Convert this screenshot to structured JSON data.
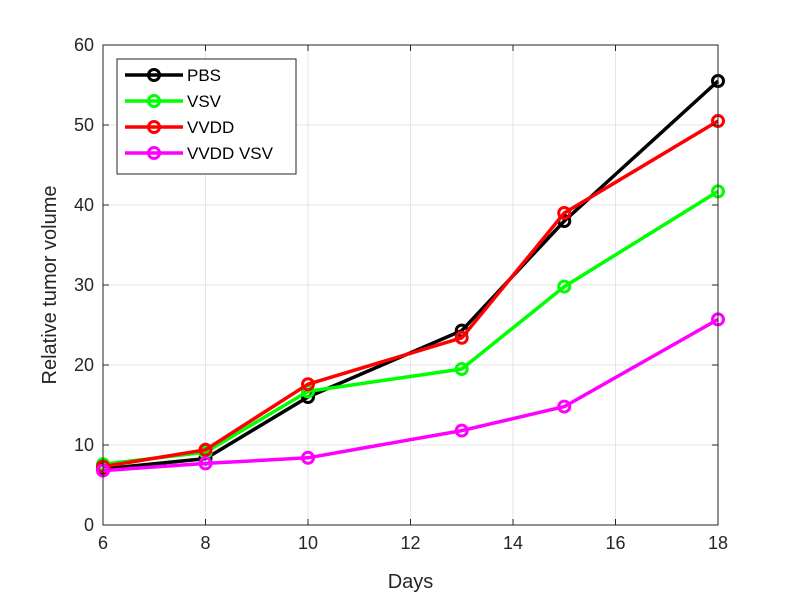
{
  "chart_data": {
    "type": "line",
    "title": "",
    "xlabel": "Days",
    "ylabel": "Relative tumor volume",
    "xlim": [
      6,
      18
    ],
    "ylim": [
      0,
      60
    ],
    "xticks": [
      6,
      8,
      10,
      12,
      14,
      16,
      18
    ],
    "yticks": [
      0,
      10,
      20,
      30,
      40,
      50,
      60
    ],
    "grid": true,
    "legend_position": "top-left",
    "x": [
      6,
      8,
      10,
      13,
      15,
      18
    ],
    "series": [
      {
        "name": "PBS",
        "color": "#000000",
        "values": [
          7.0,
          8.3,
          16.0,
          24.3,
          38.0,
          55.5
        ]
      },
      {
        "name": "VSV",
        "color": "#00ff00",
        "values": [
          7.6,
          9.1,
          16.7,
          19.5,
          29.8,
          41.7
        ]
      },
      {
        "name": "VVDD",
        "color": "#ff0000",
        "values": [
          7.3,
          9.4,
          17.6,
          23.4,
          39.0,
          50.5
        ]
      },
      {
        "name": "VVDD VSV",
        "color": "#ff00ff",
        "values": [
          6.8,
          7.7,
          8.4,
          11.8,
          14.8,
          25.7
        ]
      }
    ]
  }
}
